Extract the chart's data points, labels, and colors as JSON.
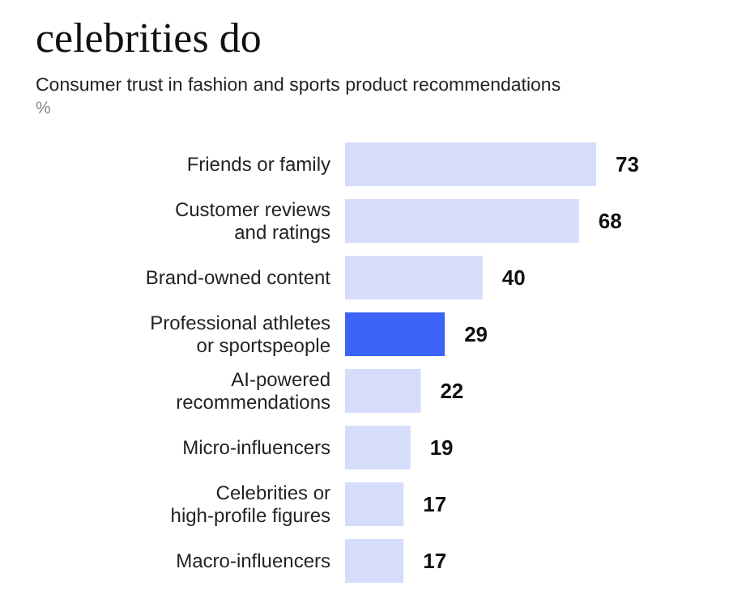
{
  "chart_data": {
    "type": "bar",
    "orientation": "horizontal",
    "title": "celebrities do",
    "subtitle": "Consumer trust in fashion and sports product recommendations",
    "annotations": [
      "%"
    ],
    "categories": [
      "Friends or family",
      "Customer reviews\nand ratings",
      "Brand-owned content",
      "Professional athletes\nor sportspeople",
      "AI-powered\nrecommendations",
      "Micro-influencers",
      "Celebrities or\nhigh-profile figures",
      "Macro-influencers"
    ],
    "values": [
      73,
      68,
      40,
      29,
      22,
      19,
      17,
      17
    ],
    "colors": [
      "#d6ddfb",
      "#d6ddfb",
      "#d6ddfb",
      "#3b63f5",
      "#d6ddfb",
      "#d6ddfb",
      "#d6ddfb",
      "#d6ddfb"
    ],
    "data_labels": true
  }
}
